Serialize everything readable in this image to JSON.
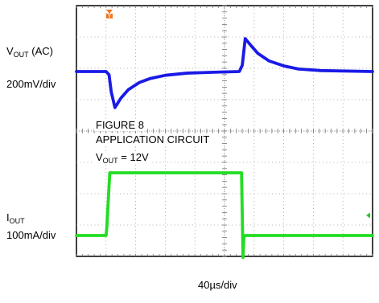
{
  "chart_data": {
    "type": "line",
    "title": "",
    "xlabel": "40µs/div",
    "time_per_div_us": 40,
    "grid": true,
    "divisions": {
      "x": 10,
      "y": 8
    },
    "series": [
      {
        "name": "V_OUT (AC)",
        "label_main": "V",
        "label_sub": "OUT",
        "label_suffix": " (AC)",
        "scale": "200mV/div",
        "color": "#1a1ae6",
        "points": [
          [
            0,
            0
          ],
          [
            40,
            0
          ],
          [
            44,
            -0.1
          ],
          [
            47,
            -0.65
          ],
          [
            52,
            -1.15
          ],
          [
            60,
            -0.85
          ],
          [
            70,
            -0.58
          ],
          [
            85,
            -0.35
          ],
          [
            100,
            -0.22
          ],
          [
            120,
            -0.12
          ],
          [
            150,
            -0.05
          ],
          [
            190,
            -0.02
          ],
          [
            220,
            0
          ],
          [
            224,
            0.2
          ],
          [
            228,
            1.05
          ],
          [
            235,
            0.85
          ],
          [
            245,
            0.58
          ],
          [
            260,
            0.34
          ],
          [
            280,
            0.18
          ],
          [
            300,
            0.08
          ],
          [
            330,
            0.03
          ],
          [
            400,
            0
          ]
        ]
      },
      {
        "name": "I_OUT",
        "label_main": "I",
        "label_sub": "OUT",
        "label_suffix": "",
        "scale": "100mA/div",
        "color": "#22dd22",
        "points": [
          [
            0,
            0
          ],
          [
            40,
            0
          ],
          [
            41,
            0.25
          ],
          [
            45,
            2.0
          ],
          [
            223,
            2.0
          ],
          [
            225,
            -0.7
          ],
          [
            226,
            -0.1
          ],
          [
            227,
            0
          ],
          [
            400,
            0
          ]
        ]
      }
    ],
    "annotations": [
      "FIGURE 8",
      "APPLICATION CIRCUIT"
    ],
    "condition": {
      "main": "V",
      "sub": "OUT",
      "rest": " =  12V"
    }
  }
}
